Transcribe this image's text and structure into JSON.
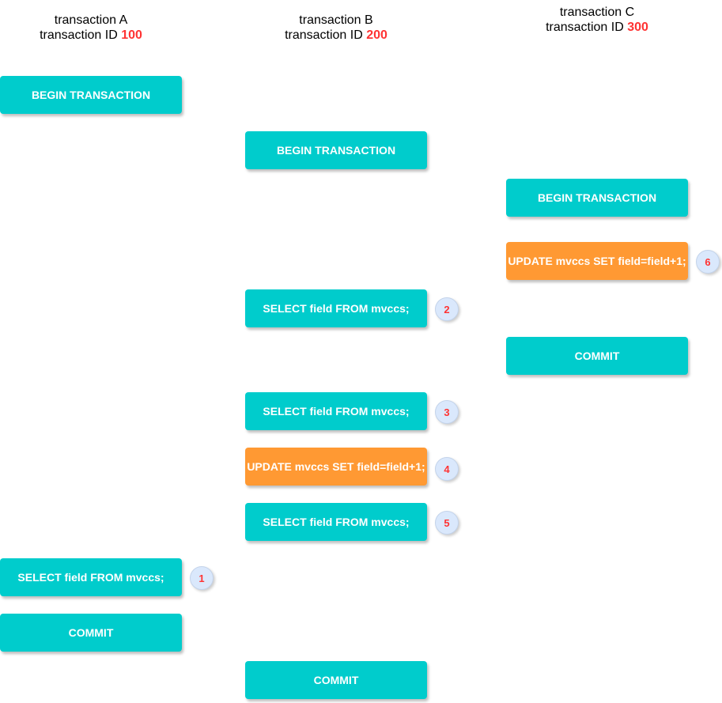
{
  "colors": {
    "begin_commit_select": "#00cccc",
    "update": "#ff9933",
    "transaction_id": "#ff3333",
    "badge_fill": "#dae8fc",
    "badge_text": "#ff3333"
  },
  "transactions": [
    {
      "name": "transaction A",
      "id_label": "transaction ID",
      "id_value": "100"
    },
    {
      "name": "transaction B",
      "id_label": "transaction ID",
      "id_value": "200"
    },
    {
      "name": "transaction C",
      "id_label": "transaction ID",
      "id_value": "300"
    }
  ],
  "steps": {
    "a_begin": "BEGIN TRANSACTION",
    "b_begin": "BEGIN TRANSACTION",
    "c_begin": "BEGIN TRANSACTION",
    "c_update": "UPDATE mvccs SET field=field+1;",
    "b_select_2": "SELECT field FROM mvccs;",
    "c_commit": "COMMIT",
    "b_select_3": "SELECT field FROM mvccs;",
    "b_update_4": "UPDATE mvccs SET field=field+1;",
    "b_select_5": "SELECT field FROM mvccs;",
    "a_select_1": "SELECT field FROM mvccs;",
    "a_commit": "COMMIT",
    "b_commit": "COMMIT"
  },
  "badges": {
    "one": "1",
    "two": "2",
    "three": "3",
    "four": "4",
    "five": "5",
    "six": "6"
  }
}
